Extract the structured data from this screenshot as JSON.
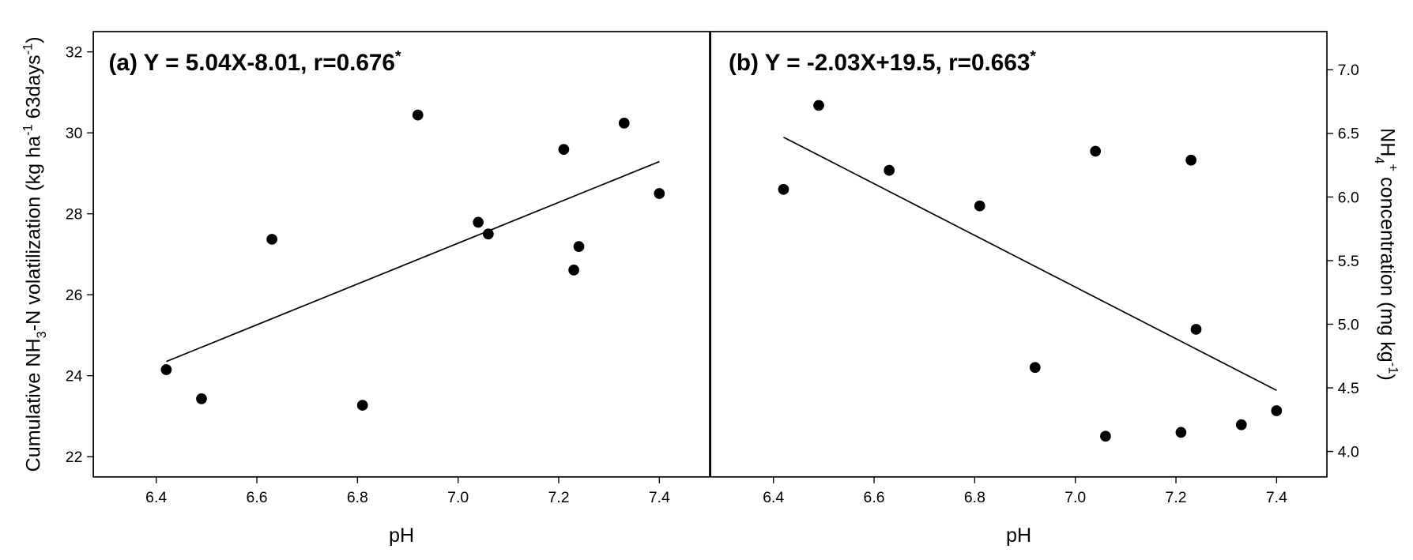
{
  "chart_data": [
    {
      "type": "scatter",
      "title": [
        {
          "text": "(a) Y = 5.04X-8.01, r=0.676"
        },
        {
          "text": "*",
          "script": "sup"
        }
      ],
      "xlabel": [
        {
          "text": "pH"
        }
      ],
      "ylabel": [
        {
          "text": "Cumulative NH"
        },
        {
          "text": "3",
          "script": "sub"
        },
        {
          "text": "-N volatilization (kg ha"
        },
        {
          "text": "-1",
          "script": "sup"
        },
        {
          "text": " 63days"
        },
        {
          "text": "-1",
          "script": "sup"
        },
        {
          "text": ")"
        }
      ],
      "yaxis_side": "left",
      "color": "#000000",
      "x": [
        6.42,
        6.49,
        6.63,
        6.81,
        6.92,
        7.04,
        7.06,
        7.21,
        7.23,
        7.24,
        7.33,
        7.4
      ],
      "values": [
        24.15,
        23.43,
        27.37,
        23.27,
        30.44,
        27.79,
        27.5,
        29.59,
        26.61,
        27.19,
        30.24,
        28.5
      ],
      "trendline": {
        "x": [
          6.42,
          7.4
        ],
        "values": [
          24.35,
          29.29
        ]
      },
      "xlim": [
        6.275,
        7.5
      ],
      "ylim": [
        21.5,
        32.5
      ],
      "xticks": [
        6.4,
        6.6,
        6.8,
        {
          "value": 7,
          "label": "7.0"
        },
        7.2,
        7.4
      ],
      "yticks": [
        22,
        24,
        26,
        28,
        30,
        32
      ]
    },
    {
      "type": "scatter",
      "title": [
        {
          "text": "(b) Y = -2.03X+19.5, r=0.663"
        },
        {
          "text": "*",
          "script": "sup"
        }
      ],
      "xlabel": [
        {
          "text": "pH"
        }
      ],
      "ylabel": [
        {
          "text": "NH"
        },
        {
          "text": "4",
          "script": "sub"
        },
        {
          "text": "+",
          "script": "sup"
        },
        {
          "text": " concentration (mg kg"
        },
        {
          "text": "-1",
          "script": "sup"
        },
        {
          "text": ")"
        }
      ],
      "yaxis_side": "right",
      "color": "#000000",
      "x": [
        6.42,
        6.49,
        6.63,
        6.81,
        6.92,
        7.04,
        7.06,
        7.21,
        7.23,
        7.24,
        7.33,
        7.4
      ],
      "values": [
        6.06,
        6.72,
        6.21,
        5.93,
        4.66,
        6.36,
        4.12,
        4.15,
        6.29,
        4.96,
        4.21,
        4.32
      ],
      "trendline": {
        "x": [
          6.42,
          7.4
        ],
        "values": [
          6.47,
          4.48
        ]
      },
      "xlim": [
        6.275,
        7.5
      ],
      "ylim": [
        3.8,
        7.3
      ],
      "xticks": [
        6.4,
        6.6,
        6.8,
        {
          "value": 7,
          "label": "7.0"
        },
        7.2,
        7.4
      ],
      "yticks": [
        {
          "value": 4,
          "label": "4.0"
        },
        4.5,
        {
          "value": 5,
          "label": "5.0"
        },
        5.5,
        {
          "value": 6,
          "label": "6.0"
        },
        6.5,
        {
          "value": 7,
          "label": "7.0"
        }
      ]
    }
  ]
}
